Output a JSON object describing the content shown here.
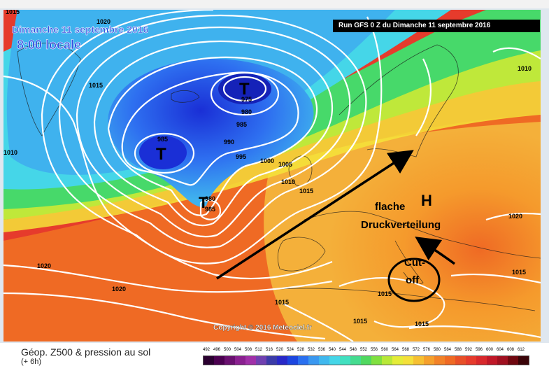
{
  "map": {
    "date_line": "Dimanche 11 septembre 2016",
    "time_line": "8:00 locale",
    "run_label": "Run GFS 0 Z du Dimanche 11 septembre 2016",
    "copyright": "Copyright © 2016 Meteociel.fr",
    "low_symbol": "T",
    "high_symbol": "H",
    "annotations": {
      "flache": "flache",
      "druck": "Druckverteilung",
      "cut": "Cut-",
      "off": "off"
    },
    "isobar_labels": [
      "1015",
      "1020",
      "1015",
      "1010",
      "975",
      "980",
      "985",
      "985",
      "990",
      "995",
      "1000",
      "1005",
      "1010",
      "1015",
      "980",
      "985",
      "1020",
      "1020",
      "1010",
      "1020",
      "1015",
      "1015",
      "1015",
      "1015",
      "1015"
    ],
    "colors": {
      "deep_blue": "#1a2fd6",
      "blue": "#2e6ff0",
      "light_blue": "#3fb2ee",
      "cyan": "#45d6e8",
      "green": "#47d96a",
      "yellow_green": "#bfe83a",
      "yellow": "#f4e43a",
      "orange": "#f59a2c",
      "dark_orange": "#ef6a24",
      "red": "#e63b2c"
    }
  },
  "footer": {
    "title": "Géop. Z500 & pression au sol",
    "subtitle": "(+ 6h)",
    "scale_values": [
      "492",
      "496",
      "500",
      "504",
      "508",
      "512",
      "516",
      "520",
      "524",
      "528",
      "532",
      "536",
      "540",
      "544",
      "548",
      "552",
      "556",
      "560",
      "564",
      "568",
      "572",
      "576",
      "580",
      "584",
      "588",
      "592",
      "596",
      "600",
      "604",
      "608",
      "612"
    ],
    "scale_colors": [
      "#2a0030",
      "#4b0050",
      "#6a1070",
      "#8a2090",
      "#a030a8",
      "#7040b0",
      "#3b3ba8",
      "#2828c8",
      "#1c46e0",
      "#2a70f0",
      "#3a98f0",
      "#40b8ee",
      "#45d6e8",
      "#42e0c0",
      "#45dc90",
      "#50d860",
      "#80e040",
      "#b8e838",
      "#e4ec38",
      "#f4e03a",
      "#f6c032",
      "#f5a02c",
      "#f28228",
      "#ef6a24",
      "#e85028",
      "#e63b2c",
      "#d8282c",
      "#c01828",
      "#a01020",
      "#700810",
      "#3a0408"
    ]
  }
}
